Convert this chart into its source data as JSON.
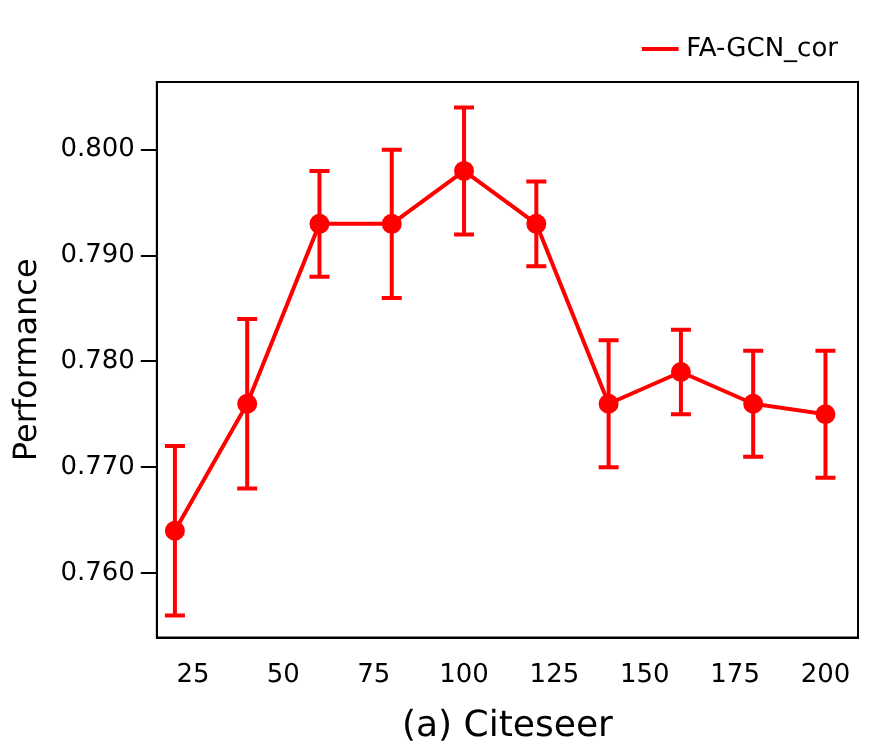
{
  "chart_data": {
    "type": "line",
    "xlabel": "(a) Citeseer",
    "ylabel": "Performance",
    "x": [
      20,
      40,
      60,
      80,
      100,
      120,
      140,
      160,
      180,
      200
    ],
    "series": [
      {
        "name": "FA-GCN_cor",
        "color": "#ff0000",
        "values": [
          0.764,
          0.776,
          0.793,
          0.793,
          0.798,
          0.793,
          0.776,
          0.779,
          0.776,
          0.775
        ],
        "errors": [
          [
            0.756,
            0.772
          ],
          [
            0.768,
            0.784
          ],
          [
            0.788,
            0.798
          ],
          [
            0.786,
            0.8
          ],
          [
            0.792,
            0.804
          ],
          [
            0.789,
            0.797
          ],
          [
            0.77,
            0.782
          ],
          [
            0.775,
            0.783
          ],
          [
            0.771,
            0.781
          ],
          [
            0.769,
            0.781
          ]
        ]
      }
    ],
    "xlim": [
      15,
      209
    ],
    "xticks": [
      25,
      50,
      75,
      100,
      125,
      150,
      175,
      200
    ],
    "ylim": [
      0.7539,
      0.8064
    ],
    "yticks": [
      {
        "value": 0.76,
        "label": "0.760"
      },
      {
        "value": 0.77,
        "label": "0.770"
      },
      {
        "value": 0.78,
        "label": "0.780"
      },
      {
        "value": 0.79,
        "label": "0.790"
      },
      {
        "value": 0.8,
        "label": "0.800"
      }
    ],
    "grid": false,
    "legend": "top right",
    "marker": "circle",
    "line_style": "solid"
  }
}
